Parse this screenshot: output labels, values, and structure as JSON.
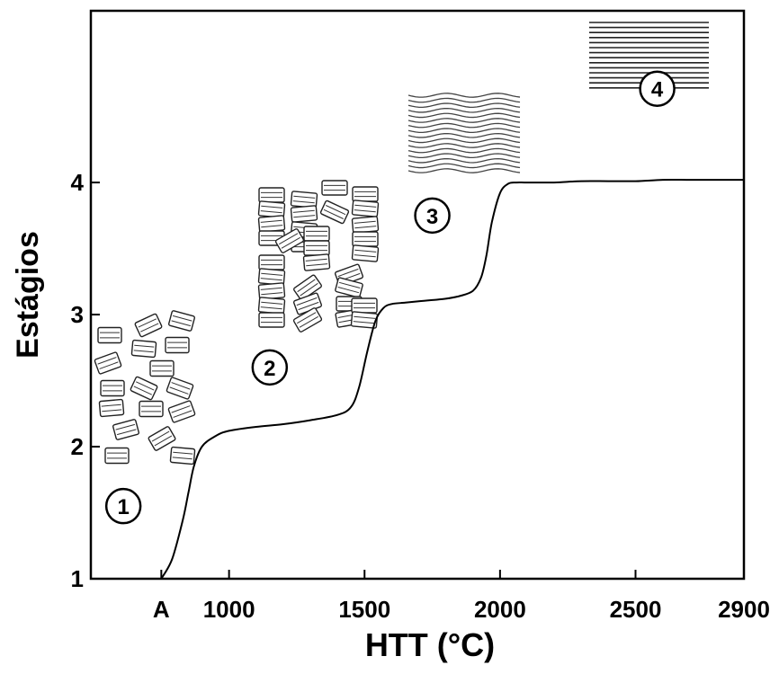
{
  "chart_data": {
    "type": "line",
    "title": "",
    "xlabel": "HTT (°C)",
    "ylabel": "Estágios",
    "x_ticks": [
      {
        "label": "A",
        "value": 750
      },
      {
        "label": "1000",
        "value": 1000
      },
      {
        "label": "1500",
        "value": 1500
      },
      {
        "label": "2000",
        "value": 2000
      },
      {
        "label": "2500",
        "value": 2500
      },
      {
        "label": "2900",
        "value": 2900
      }
    ],
    "y_ticks": [
      {
        "label": "1",
        "value": 1
      },
      {
        "label": "2",
        "value": 2
      },
      {
        "label": "3",
        "value": 3
      },
      {
        "label": "4",
        "value": 4
      }
    ],
    "xlim": [
      490,
      2900
    ],
    "ylim": [
      1,
      5.3
    ],
    "grid": false,
    "series": [
      {
        "x": [
          750,
          790,
          830,
          850,
          870,
          900,
          950,
          1000,
          1100,
          1200,
          1300,
          1400,
          1450,
          1480,
          1510,
          1540,
          1570,
          1600,
          1650,
          1700,
          1750,
          1800,
          1850,
          1900,
          1930,
          1950,
          1970,
          2000,
          2030,
          2060,
          2100,
          2200,
          2300,
          2400,
          2500,
          2600,
          2700,
          2800,
          2900
        ],
        "y": [
          1.0,
          1.15,
          1.45,
          1.65,
          1.85,
          2.0,
          2.08,
          2.12,
          2.15,
          2.17,
          2.2,
          2.24,
          2.3,
          2.45,
          2.72,
          2.95,
          3.05,
          3.08,
          3.09,
          3.1,
          3.11,
          3.12,
          3.14,
          3.18,
          3.28,
          3.45,
          3.7,
          3.92,
          3.99,
          4.0,
          4.0,
          4.0,
          4.01,
          4.01,
          4.01,
          4.02,
          4.02,
          4.02,
          4.02
        ]
      }
    ],
    "annotations": [
      {
        "label": "1",
        "x": 610,
        "y": 1.55
      },
      {
        "label": "2",
        "x": 1150,
        "y": 2.6
      },
      {
        "label": "3",
        "x": 1750,
        "y": 3.75
      },
      {
        "label": "4",
        "x": 2580,
        "y": 4.71
      }
    ]
  }
}
